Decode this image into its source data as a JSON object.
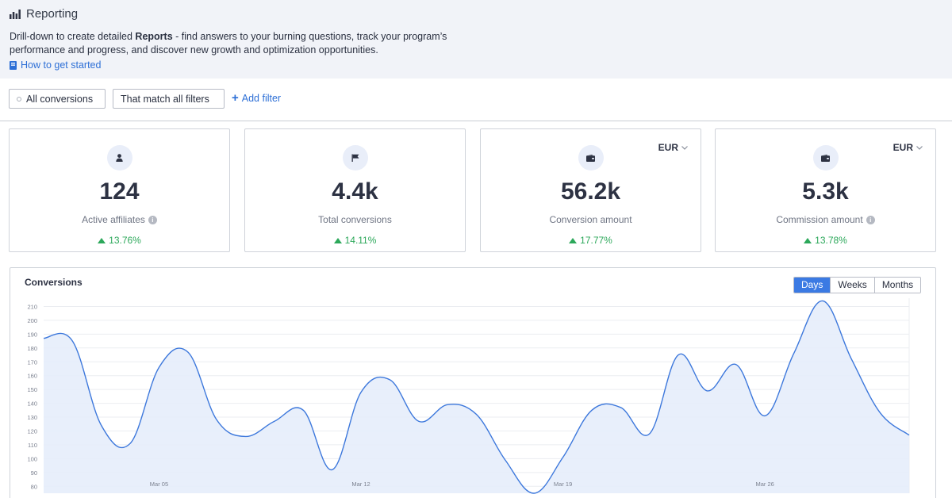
{
  "header": {
    "title": "Reporting",
    "desc_pre": "Drill-down to create detailed ",
    "desc_bold": "Reports",
    "desc_post": " - find answers to your burning questions, track your program’s performance and progress, and discover new growth and optimization opportunities.",
    "help_link": "How to get started"
  },
  "filters": {
    "scope_label": "All conversions",
    "match_label": "That match all filters",
    "add_label": "Add filter"
  },
  "cards": [
    {
      "icon": "user-icon",
      "value": "124",
      "label": "Active affiliates",
      "delta": "13.76%",
      "currency": ""
    },
    {
      "icon": "flag-icon",
      "value": "4.4k",
      "label": "Total conversions",
      "delta": "14.11%",
      "currency": ""
    },
    {
      "icon": "wallet-icon",
      "value": "56.2k",
      "label": "Conversion amount",
      "delta": "17.77%",
      "currency": "EUR"
    },
    {
      "icon": "wallet-icon",
      "value": "5.3k",
      "label": "Commission amount",
      "delta": "13.78%",
      "currency": "EUR"
    }
  ],
  "colors": {
    "accent": "#3b7ae3",
    "positive": "#2ca85a",
    "line": "#3d78dc",
    "area": "#e6edfb"
  },
  "chart": {
    "title": "Conversions",
    "granularity": [
      "Days",
      "Weeks",
      "Months"
    ],
    "active_granularity": "Days"
  },
  "chart_data": {
    "type": "area",
    "title": "Conversions",
    "xlabel": "",
    "ylabel": "",
    "ylim": [
      75,
      216
    ],
    "yticks": [
      80,
      90,
      100,
      110,
      120,
      130,
      140,
      150,
      160,
      170,
      180,
      190,
      200,
      210
    ],
    "xticks": [
      {
        "day": 5,
        "label": "Mar 05"
      },
      {
        "day": 12,
        "label": "Mar 12"
      },
      {
        "day": 19,
        "label": "Mar 19"
      },
      {
        "day": 26,
        "label": "Mar 26"
      }
    ],
    "x_dates": [
      "Mar 01",
      "Mar 02",
      "Mar 03",
      "Mar 04",
      "Mar 05",
      "Mar 06",
      "Mar 07",
      "Mar 08",
      "Mar 09",
      "Mar 10",
      "Mar 11",
      "Mar 12",
      "Mar 13",
      "Mar 14",
      "Mar 15",
      "Mar 16",
      "Mar 17",
      "Mar 18",
      "Mar 19",
      "Mar 20",
      "Mar 21",
      "Mar 22",
      "Mar 23",
      "Mar 24",
      "Mar 25",
      "Mar 26",
      "Mar 27",
      "Mar 28",
      "Mar 29",
      "Mar 30",
      "Mar 31"
    ],
    "x": [
      1,
      2,
      3,
      4,
      5,
      6,
      7,
      8,
      9,
      10,
      11,
      12,
      13,
      14,
      15,
      16,
      17,
      18,
      19,
      20,
      21,
      22,
      23,
      24,
      25,
      26,
      27,
      28,
      29,
      30,
      31
    ],
    "series": [
      {
        "values": [
          187,
          185,
          124,
          111,
          166,
          177,
          128,
          116,
          127,
          135,
          92,
          148,
          157,
          127,
          139,
          132,
          99,
          75,
          101,
          135,
          137,
          118,
          175,
          149,
          168,
          131,
          176,
          214,
          172,
          133,
          117
        ]
      }
    ],
    "grid": true,
    "legend": "none"
  }
}
